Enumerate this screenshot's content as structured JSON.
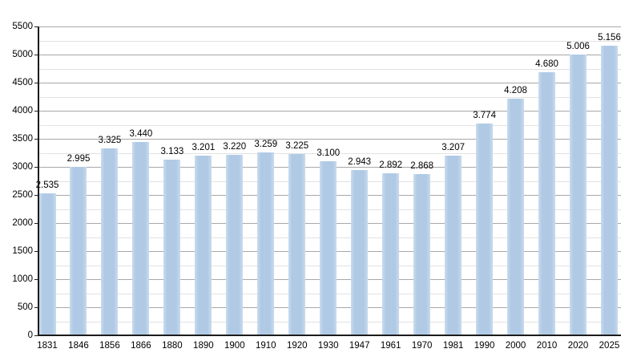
{
  "chart_data": {
    "type": "bar",
    "title": "",
    "categories": [
      "1831",
      "1846",
      "1856",
      "1866",
      "1880",
      "1890",
      "1900",
      "1910",
      "1920",
      "1930",
      "1947",
      "1961",
      "1970",
      "1981",
      "1990",
      "2000",
      "2010",
      "2020",
      "2025"
    ],
    "values": [
      2535,
      2995,
      3325,
      3440,
      3133,
      3201,
      3220,
      3259,
      3225,
      3100,
      2943,
      2892,
      2868,
      3207,
      3774,
      4208,
      4680,
      5006,
      5156
    ],
    "value_labels": [
      "2.535",
      "2.995",
      "3.325",
      "3.440",
      "3.133",
      "3.201",
      "3.220",
      "3.259",
      "3.225",
      "3.100",
      "2.943",
      "2.892",
      "2.868",
      "3.207",
      "3.774",
      "4.208",
      "4.680",
      "5.006",
      "5.156"
    ],
    "xlabel": "",
    "ylabel": "",
    "ylim": [
      0,
      5500
    ],
    "y_major_step": 500,
    "y_minor_step": 250,
    "y_tick_labels": [
      "0",
      "500",
      "1000",
      "1500",
      "2000",
      "2500",
      "3000",
      "3500",
      "4000",
      "4500",
      "5000",
      "5500"
    ],
    "grid": "major-and-minor-horizontal",
    "legend": "none",
    "colors": {
      "bar": "#b0cae5",
      "bar_edge_highlight": "#c9dbee",
      "grid_major": "#a8a8a8",
      "grid_minor": "#e2e2e2",
      "axis": "#1c1c1c",
      "text": "#000000",
      "background": "#ffffff"
    }
  }
}
